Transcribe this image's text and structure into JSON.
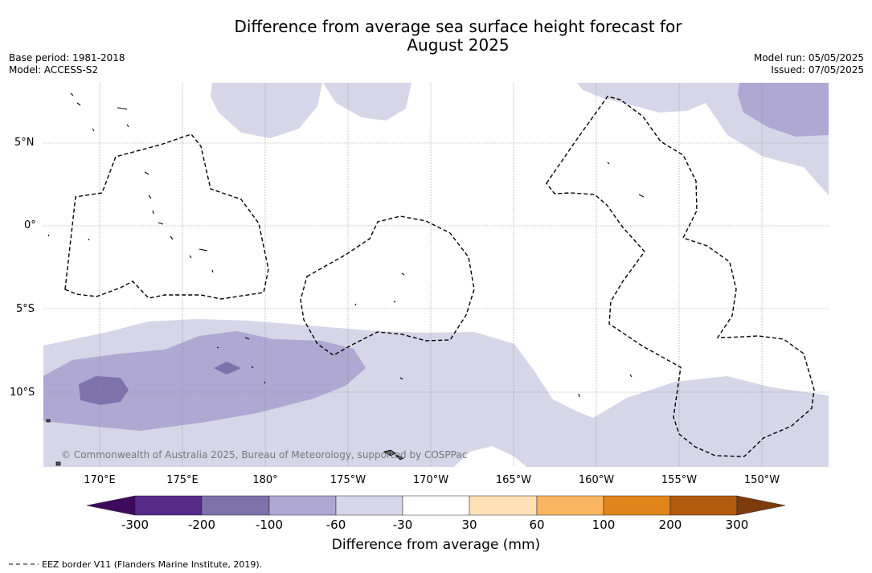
{
  "title_line1": "Difference from average sea surface height forecast for",
  "title_line2": "August 2025",
  "base_period": "Base period: 1981-2018",
  "model": "Model: ACCESS-S2",
  "model_run": "Model run: 05/05/2025",
  "issued": "Issued: 07/05/2025",
  "lat_labels": [
    "5°N",
    "0°",
    "5°S",
    "10°S"
  ],
  "lon_labels": [
    "170°E",
    "175°E",
    "180°",
    "175°W",
    "170°W",
    "165°W",
    "160°W",
    "155°W",
    "150°W"
  ],
  "copyright": "© Commonwealth of Australia 2025, Bureau of Meteorology, supported by COSPPac",
  "colorbar": {
    "label": "Difference from average (mm)",
    "ticks": [
      "-300",
      "-200",
      "-100",
      "-60",
      "-30",
      "30",
      "60",
      "100",
      "200",
      "300"
    ],
    "colors": [
      "#3f0a5e",
      "#582a8a",
      "#7e72ad",
      "#aea8d2",
      "#d6d6e8",
      "#ffffff",
      "#fde0b6",
      "#f9b55f",
      "#e0851b",
      "#b25b0c",
      "#7d3c0c"
    ]
  },
  "legend_eez": "EEZ border V11 (Flanders Marine Institute, 2019)."
}
